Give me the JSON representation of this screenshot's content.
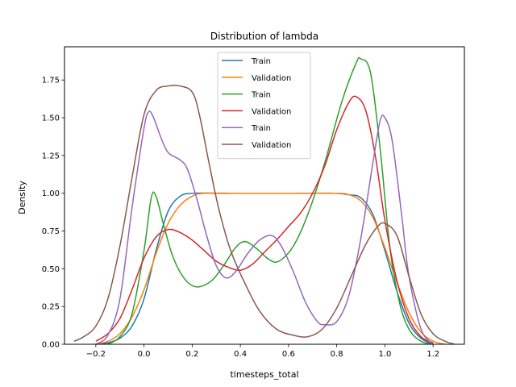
{
  "chart_data": {
    "type": "line",
    "title": "Distribution of lambda",
    "xlabel": "timesteps_total",
    "ylabel": "Density",
    "xlim": [
      -0.33,
      1.33
    ],
    "ylim": [
      0,
      1.97
    ],
    "xticks": [
      -0.2,
      0.0,
      0.2,
      0.4,
      0.6,
      0.8,
      1.0,
      1.2
    ],
    "xtick_labels": [
      "−0.2",
      "0.0",
      "0.2",
      "0.4",
      "0.6",
      "0.8",
      "1.0",
      "1.2"
    ],
    "yticks": [
      0.0,
      0.25,
      0.5,
      0.75,
      1.0,
      1.25,
      1.5,
      1.75
    ],
    "ytick_labels": [
      "0.00",
      "0.25",
      "0.50",
      "0.75",
      "1.00",
      "1.25",
      "1.50",
      "1.75"
    ],
    "legend_position": "top-center",
    "series": [
      {
        "name": "Train",
        "color": "#1f77b4",
        "points": [
          [
            -0.2,
            0.0
          ],
          [
            -0.15,
            0.01
          ],
          [
            -0.1,
            0.04
          ],
          [
            -0.05,
            0.12
          ],
          [
            0.0,
            0.3
          ],
          [
            0.05,
            0.62
          ],
          [
            0.1,
            0.88
          ],
          [
            0.15,
            0.98
          ],
          [
            0.2,
            1.0
          ],
          [
            0.3,
            1.0
          ],
          [
            0.4,
            1.0
          ],
          [
            0.5,
            1.0
          ],
          [
            0.6,
            1.0
          ],
          [
            0.7,
            1.0
          ],
          [
            0.8,
            1.0
          ],
          [
            0.85,
            0.99
          ],
          [
            0.9,
            0.97
          ],
          [
            0.95,
            0.86
          ],
          [
            1.0,
            0.62
          ],
          [
            1.05,
            0.35
          ],
          [
            1.1,
            0.14
          ],
          [
            1.15,
            0.04
          ],
          [
            1.2,
            0.0
          ]
        ]
      },
      {
        "name": "Validation",
        "color": "#ff7f0e",
        "points": [
          [
            -0.2,
            0.0
          ],
          [
            -0.15,
            0.02
          ],
          [
            -0.1,
            0.07
          ],
          [
            -0.05,
            0.18
          ],
          [
            0.0,
            0.36
          ],
          [
            0.05,
            0.6
          ],
          [
            0.1,
            0.8
          ],
          [
            0.15,
            0.92
          ],
          [
            0.2,
            0.98
          ],
          [
            0.25,
            1.0
          ],
          [
            0.4,
            1.0
          ],
          [
            0.6,
            1.0
          ],
          [
            0.8,
            1.0
          ],
          [
            0.85,
            0.99
          ],
          [
            0.9,
            0.95
          ],
          [
            0.95,
            0.84
          ],
          [
            1.0,
            0.64
          ],
          [
            1.05,
            0.41
          ],
          [
            1.1,
            0.21
          ],
          [
            1.15,
            0.08
          ],
          [
            1.2,
            0.02
          ],
          [
            1.25,
            0.0
          ]
        ]
      },
      {
        "name": "Train",
        "color": "#2ca02c",
        "points": [
          [
            -0.15,
            0.0
          ],
          [
            -0.1,
            0.05
          ],
          [
            -0.05,
            0.2
          ],
          [
            0.0,
            0.62
          ],
          [
            0.03,
            0.97
          ],
          [
            0.05,
            0.98
          ],
          [
            0.08,
            0.8
          ],
          [
            0.12,
            0.58
          ],
          [
            0.17,
            0.43
          ],
          [
            0.22,
            0.38
          ],
          [
            0.28,
            0.42
          ],
          [
            0.33,
            0.52
          ],
          [
            0.38,
            0.64
          ],
          [
            0.42,
            0.68
          ],
          [
            0.47,
            0.63
          ],
          [
            0.52,
            0.56
          ],
          [
            0.56,
            0.55
          ],
          [
            0.62,
            0.65
          ],
          [
            0.68,
            0.86
          ],
          [
            0.75,
            1.2
          ],
          [
            0.82,
            1.6
          ],
          [
            0.88,
            1.86
          ],
          [
            0.9,
            1.89
          ],
          [
            0.94,
            1.8
          ],
          [
            0.98,
            1.3
          ],
          [
            1.02,
            0.65
          ],
          [
            1.06,
            0.28
          ],
          [
            1.1,
            0.1
          ],
          [
            1.15,
            0.02
          ],
          [
            1.2,
            0.0
          ]
        ]
      },
      {
        "name": "Validation",
        "color": "#d62728",
        "points": [
          [
            -0.2,
            0.02
          ],
          [
            -0.15,
            0.07
          ],
          [
            -0.1,
            0.17
          ],
          [
            -0.05,
            0.36
          ],
          [
            0.0,
            0.57
          ],
          [
            0.05,
            0.71
          ],
          [
            0.1,
            0.76
          ],
          [
            0.15,
            0.74
          ],
          [
            0.2,
            0.69
          ],
          [
            0.25,
            0.62
          ],
          [
            0.3,
            0.55
          ],
          [
            0.35,
            0.51
          ],
          [
            0.4,
            0.49
          ],
          [
            0.45,
            0.53
          ],
          [
            0.5,
            0.61
          ],
          [
            0.55,
            0.69
          ],
          [
            0.6,
            0.78
          ],
          [
            0.65,
            0.87
          ],
          [
            0.7,
            1.0
          ],
          [
            0.75,
            1.18
          ],
          [
            0.8,
            1.42
          ],
          [
            0.85,
            1.6
          ],
          [
            0.88,
            1.64
          ],
          [
            0.92,
            1.55
          ],
          [
            0.96,
            1.25
          ],
          [
            1.0,
            0.82
          ],
          [
            1.05,
            0.42
          ],
          [
            1.1,
            0.17
          ],
          [
            1.15,
            0.05
          ],
          [
            1.2,
            0.01
          ]
        ]
      },
      {
        "name": "Train",
        "color": "#9467bd",
        "points": [
          [
            -0.2,
            0.0
          ],
          [
            -0.15,
            0.06
          ],
          [
            -0.1,
            0.3
          ],
          [
            -0.05,
            0.9
          ],
          [
            0.0,
            1.43
          ],
          [
            0.02,
            1.54
          ],
          [
            0.04,
            1.5
          ],
          [
            0.07,
            1.37
          ],
          [
            0.1,
            1.27
          ],
          [
            0.15,
            1.22
          ],
          [
            0.18,
            1.16
          ],
          [
            0.22,
            0.96
          ],
          [
            0.26,
            0.72
          ],
          [
            0.3,
            0.52
          ],
          [
            0.34,
            0.44
          ],
          [
            0.38,
            0.48
          ],
          [
            0.43,
            0.6
          ],
          [
            0.48,
            0.69
          ],
          [
            0.53,
            0.72
          ],
          [
            0.57,
            0.65
          ],
          [
            0.62,
            0.48
          ],
          [
            0.67,
            0.28
          ],
          [
            0.72,
            0.15
          ],
          [
            0.75,
            0.13
          ],
          [
            0.8,
            0.15
          ],
          [
            0.85,
            0.32
          ],
          [
            0.9,
            0.7
          ],
          [
            0.95,
            1.2
          ],
          [
            0.98,
            1.48
          ],
          [
            1.0,
            1.5
          ],
          [
            1.03,
            1.35
          ],
          [
            1.07,
            0.85
          ],
          [
            1.1,
            0.45
          ],
          [
            1.15,
            0.1
          ],
          [
            1.2,
            0.0
          ]
        ]
      },
      {
        "name": "Validation",
        "color": "#8c564b",
        "points": [
          [
            -0.29,
            0.02
          ],
          [
            -0.25,
            0.05
          ],
          [
            -0.2,
            0.12
          ],
          [
            -0.15,
            0.3
          ],
          [
            -0.1,
            0.65
          ],
          [
            -0.05,
            1.1
          ],
          [
            0.0,
            1.52
          ],
          [
            0.05,
            1.68
          ],
          [
            0.1,
            1.71
          ],
          [
            0.15,
            1.71
          ],
          [
            0.2,
            1.67
          ],
          [
            0.23,
            1.52
          ],
          [
            0.27,
            1.2
          ],
          [
            0.31,
            0.9
          ],
          [
            0.36,
            0.62
          ],
          [
            0.42,
            0.4
          ],
          [
            0.48,
            0.22
          ],
          [
            0.55,
            0.1
          ],
          [
            0.62,
            0.06
          ],
          [
            0.68,
            0.05
          ],
          [
            0.74,
            0.1
          ],
          [
            0.8,
            0.24
          ],
          [
            0.86,
            0.45
          ],
          [
            0.92,
            0.66
          ],
          [
            0.97,
            0.78
          ],
          [
            1.0,
            0.8
          ],
          [
            1.05,
            0.72
          ],
          [
            1.1,
            0.45
          ],
          [
            1.15,
            0.2
          ],
          [
            1.2,
            0.07
          ],
          [
            1.25,
            0.02
          ],
          [
            1.29,
            0.0
          ]
        ]
      }
    ]
  }
}
